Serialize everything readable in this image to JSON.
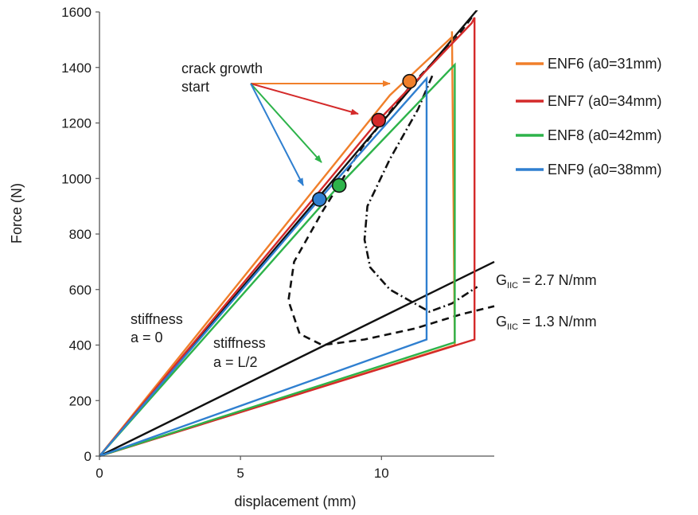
{
  "chart_data": {
    "type": "line",
    "xlabel": "displacement (mm)",
    "ylabel": "Force (N)",
    "xlim": [
      0,
      14
    ],
    "ylim": [
      0,
      1600
    ],
    "xticks": [
      0,
      5,
      10
    ],
    "yticks": [
      0,
      200,
      400,
      600,
      800,
      1000,
      1200,
      1400,
      1600
    ],
    "grid": false,
    "legend_position": "right",
    "colors": {
      "ENF6": "#f07f2a",
      "ENF7": "#d42a2a",
      "ENF8": "#2db34a",
      "ENF9": "#2f7fd0",
      "reference": "#111111"
    },
    "series": [
      {
        "name": "ENF6 (a0=31mm)",
        "color": "#f07f2a",
        "x": [
          0,
          10.3,
          12.5,
          12.5,
          12.6,
          0
        ],
        "y": [
          0,
          1300,
          1510,
          1530,
          400,
          0
        ]
      },
      {
        "name": "ENF7 (a0=34mm)",
        "color": "#d42a2a",
        "x": [
          0,
          9.9,
          13.2,
          13.3,
          13.3,
          0
        ],
        "y": [
          0,
          1210,
          1560,
          1580,
          420,
          0
        ]
      },
      {
        "name": "ENF8 (a0=42mm)",
        "color": "#2db34a",
        "x": [
          0,
          8.5,
          12.5,
          12.6,
          12.6,
          0
        ],
        "y": [
          0,
          975,
          1400,
          1410,
          410,
          0
        ]
      },
      {
        "name": "ENF9 (a0=38mm)",
        "color": "#2f7fd0",
        "x": [
          0,
          7.8,
          11.6,
          11.6,
          0
        ],
        "y": [
          0,
          925,
          1360,
          420,
          0
        ]
      }
    ],
    "crack_points": [
      {
        "series": 0,
        "x": 11.0,
        "y": 1350
      },
      {
        "series": 1,
        "x": 9.9,
        "y": 1210
      },
      {
        "series": 2,
        "x": 8.5,
        "y": 975
      },
      {
        "series": 3,
        "x": 7.8,
        "y": 925
      }
    ],
    "reference_lines": [
      {
        "label": "stiffness a = 0",
        "x": [
          0,
          13.5
        ],
        "y": [
          0,
          1620
        ]
      },
      {
        "label": "stiffness a = L/2",
        "x": [
          0,
          14.0
        ],
        "y": [
          0,
          700
        ]
      }
    ],
    "g_curves": [
      {
        "label": "G_IIC = 2.7 N/mm",
        "style": "dash-dot",
        "x": [
          11.8,
          11.3,
          10.3,
          9.5,
          9.4,
          9.6,
          10.3,
          11.0,
          11.7,
          12.5,
          13.4
        ],
        "y": [
          1370,
          1250,
          1070,
          900,
          780,
          680,
          600,
          560,
          520,
          550,
          610
        ]
      },
      {
        "label": "G_IIC = 1.3 N/mm",
        "style": "dashed",
        "x": [
          13.2,
          12.6,
          11.0,
          9.3,
          7.9,
          6.9,
          6.7,
          7.1,
          7.9,
          9.4,
          11.2,
          12.8,
          14.0
        ],
        "y": [
          1580,
          1500,
          1330,
          1110,
          880,
          700,
          560,
          440,
          400,
          420,
          460,
          510,
          540
        ]
      }
    ],
    "annotations": {
      "crack_label_line1": "crack growth",
      "crack_label_line2": "start",
      "stiff0_line1": "stiffness",
      "stiff0_line2": "a = 0",
      "stiffL_line1": "stiffness",
      "stiffL_line2": "a = L/2",
      "g1_prefix": "G",
      "g1_sub": "IIC",
      "g1_suffix": " = 2.7  N/mm",
      "g2_prefix": "G",
      "g2_sub": "IIC",
      "g2_suffix": " = 1.3 N/mm"
    }
  }
}
